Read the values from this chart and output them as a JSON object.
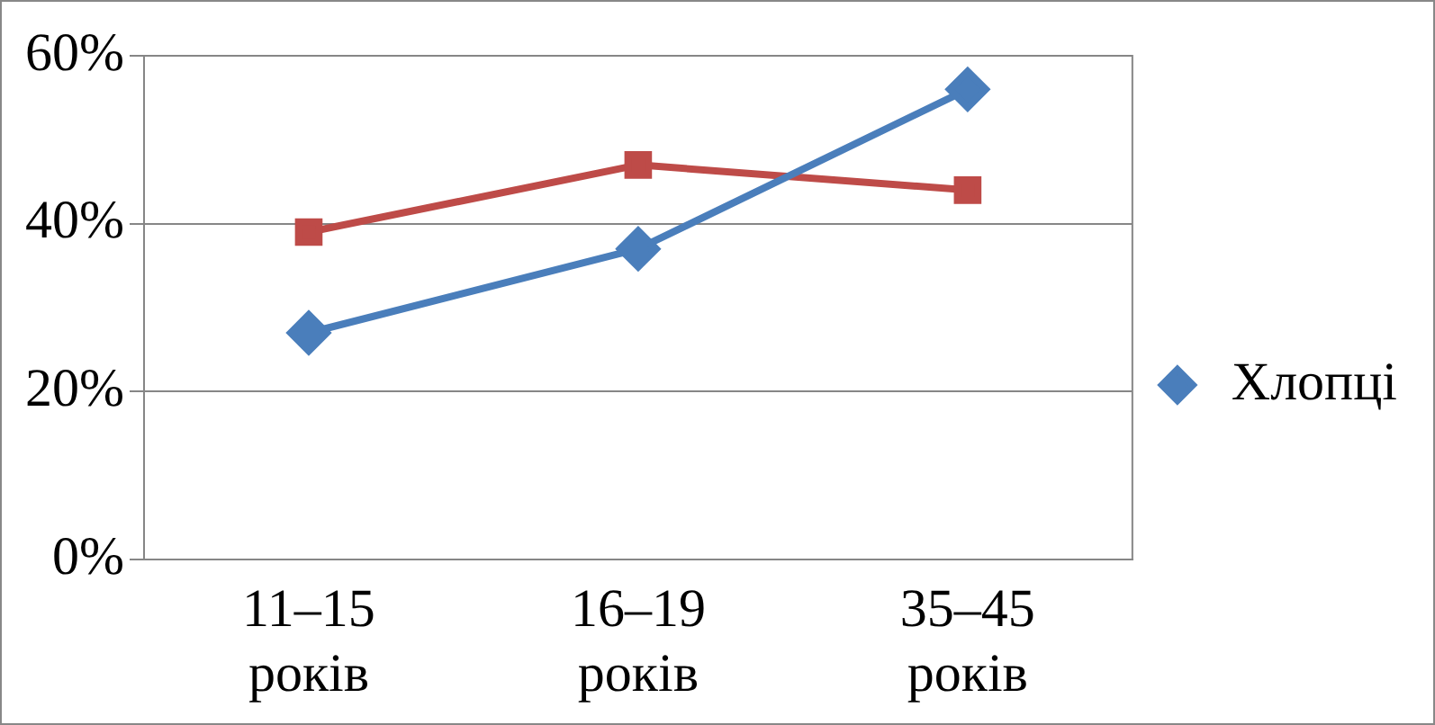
{
  "chart_data": {
    "type": "line",
    "categories": [
      "11–15 років",
      "16–19 років",
      "35–45 років"
    ],
    "series": [
      {
        "name": "Хлопці",
        "color": "#4a7ebb",
        "values": [
          27,
          37,
          56
        ],
        "marker": "diamond"
      },
      {
        "color": "#be4b48",
        "values": [
          39,
          47,
          44
        ],
        "marker": "square"
      }
    ],
    "ylim": [
      0,
      60
    ],
    "yticks": [
      {
        "value": 0,
        "label": "0%"
      },
      {
        "value": 20,
        "label": "20%"
      },
      {
        "value": 40,
        "label": "40%"
      },
      {
        "value": 60,
        "label": "60%"
      }
    ],
    "grid": "y",
    "legend": "right"
  }
}
